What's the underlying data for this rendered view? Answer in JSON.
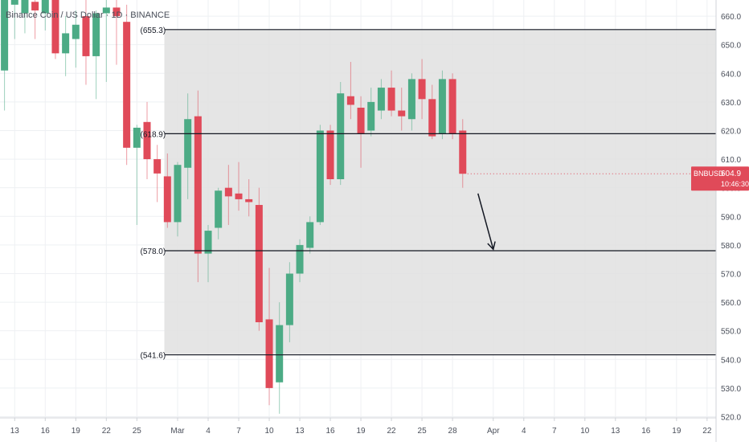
{
  "chart_data": {
    "type": "candlestick",
    "title": "Binance Coin / US Dollar · 1D · BINANCE",
    "ylim": [
      517,
      668
    ],
    "y_ticks": [
      520,
      530,
      540,
      550,
      560,
      570,
      580,
      590,
      600,
      610,
      620,
      630,
      640,
      650,
      660
    ],
    "y_tick_labels": [
      "520.0",
      "530.0",
      "540.0",
      "550.0",
      "560.0",
      "570.0",
      "580.0",
      "590.0",
      "600.0",
      "610.0",
      "620.0",
      "630.0",
      "640.0",
      "650.0",
      "660.0"
    ],
    "x_ticks": [
      {
        "label": "13",
        "day": -16
      },
      {
        "label": "16",
        "day": -13
      },
      {
        "label": "19",
        "day": -10
      },
      {
        "label": "22",
        "day": -7
      },
      {
        "label": "25",
        "day": -4
      },
      {
        "label": "Mar",
        "day": 0
      },
      {
        "label": "4",
        "day": 3
      },
      {
        "label": "7",
        "day": 6
      },
      {
        "label": "10",
        "day": 9
      },
      {
        "label": "13",
        "day": 12
      },
      {
        "label": "16",
        "day": 15
      },
      {
        "label": "19",
        "day": 18
      },
      {
        "label": "22",
        "day": 21
      },
      {
        "label": "25",
        "day": 24
      },
      {
        "label": "28",
        "day": 27
      },
      {
        "label": "Apr",
        "day": 31
      },
      {
        "label": "4",
        "day": 34
      },
      {
        "label": "7",
        "day": 37
      },
      {
        "label": "10",
        "day": 40
      },
      {
        "label": "13",
        "day": 43
      },
      {
        "label": "16",
        "day": 46
      },
      {
        "label": "19",
        "day": 49
      },
      {
        "label": "22",
        "day": 52
      }
    ],
    "candles": [
      {
        "day": -17,
        "o": 641,
        "h": 668,
        "l": 627,
        "c": 666
      },
      {
        "day": -16,
        "o": 664,
        "h": 670,
        "l": 652,
        "c": 668
      },
      {
        "day": -15,
        "o": 661,
        "h": 668,
        "l": 654,
        "c": 666
      },
      {
        "day": -14,
        "o": 665,
        "h": 670,
        "l": 652,
        "c": 662
      },
      {
        "day": -13,
        "o": 661,
        "h": 668,
        "l": 655,
        "c": 666
      },
      {
        "day": -12,
        "o": 666,
        "h": 670,
        "l": 645,
        "c": 647
      },
      {
        "day": -11,
        "o": 647,
        "h": 660,
        "l": 639,
        "c": 654
      },
      {
        "day": -10,
        "o": 652,
        "h": 662,
        "l": 642,
        "c": 657
      },
      {
        "day": -9,
        "o": 660,
        "h": 666,
        "l": 636,
        "c": 646
      },
      {
        "day": -8,
        "o": 646,
        "h": 662,
        "l": 631,
        "c": 661
      },
      {
        "day": -7,
        "o": 661,
        "h": 670,
        "l": 637,
        "c": 663
      },
      {
        "day": -6,
        "o": 663,
        "h": 668,
        "l": 643,
        "c": 660
      },
      {
        "day": -5,
        "o": 658,
        "h": 664,
        "l": 608,
        "c": 614
      },
      {
        "day": -4,
        "o": 614,
        "h": 622,
        "l": 587,
        "c": 621
      },
      {
        "day": -3,
        "o": 623,
        "h": 630,
        "l": 603,
        "c": 610
      },
      {
        "day": -2,
        "o": 610,
        "h": 615,
        "l": 595,
        "c": 605
      },
      {
        "day": -1,
        "o": 604,
        "h": 612,
        "l": 586,
        "c": 588
      },
      {
        "day": 0,
        "o": 588,
        "h": 609,
        "l": 583,
        "c": 608
      },
      {
        "day": 1,
        "o": 607,
        "h": 633,
        "l": 596,
        "c": 624
      },
      {
        "day": 2,
        "o": 625,
        "h": 634,
        "l": 567,
        "c": 577
      },
      {
        "day": 3,
        "o": 577,
        "h": 587,
        "l": 567,
        "c": 585
      },
      {
        "day": 4,
        "o": 586,
        "h": 600,
        "l": 582,
        "c": 599
      },
      {
        "day": 5,
        "o": 600,
        "h": 608,
        "l": 587,
        "c": 597
      },
      {
        "day": 6,
        "o": 598,
        "h": 609,
        "l": 592,
        "c": 596
      },
      {
        "day": 7,
        "o": 596,
        "h": 603,
        "l": 590,
        "c": 595
      },
      {
        "day": 8,
        "o": 594,
        "h": 600,
        "l": 550,
        "c": 553
      },
      {
        "day": 9,
        "o": 554,
        "h": 572,
        "l": 524,
        "c": 530
      },
      {
        "day": 10,
        "o": 532,
        "h": 560,
        "l": 521,
        "c": 552
      },
      {
        "day": 11,
        "o": 552,
        "h": 574,
        "l": 546,
        "c": 570
      },
      {
        "day": 12,
        "o": 570,
        "h": 582,
        "l": 567,
        "c": 580
      },
      {
        "day": 13,
        "o": 579,
        "h": 590,
        "l": 577,
        "c": 588
      },
      {
        "day": 14,
        "o": 588,
        "h": 622,
        "l": 587,
        "c": 620
      },
      {
        "day": 15,
        "o": 620,
        "h": 622,
        "l": 601,
        "c": 603
      },
      {
        "day": 16,
        "o": 603,
        "h": 637,
        "l": 601,
        "c": 633
      },
      {
        "day": 17,
        "o": 632,
        "h": 644,
        "l": 624,
        "c": 629
      },
      {
        "day": 18,
        "o": 628,
        "h": 632,
        "l": 607,
        "c": 619
      },
      {
        "day": 19,
        "o": 620,
        "h": 635,
        "l": 618,
        "c": 630
      },
      {
        "day": 20,
        "o": 627,
        "h": 638,
        "l": 624,
        "c": 635
      },
      {
        "day": 21,
        "o": 635,
        "h": 641,
        "l": 625,
        "c": 627
      },
      {
        "day": 22,
        "o": 627,
        "h": 635,
        "l": 620,
        "c": 625
      },
      {
        "day": 23,
        "o": 624,
        "h": 640,
        "l": 620,
        "c": 638
      },
      {
        "day": 24,
        "o": 638,
        "h": 645,
        "l": 624,
        "c": 631
      },
      {
        "day": 25,
        "o": 631,
        "h": 636,
        "l": 617,
        "c": 618
      },
      {
        "day": 26,
        "o": 619,
        "h": 641,
        "l": 617,
        "c": 638
      },
      {
        "day": 27,
        "o": 638,
        "h": 640,
        "l": 617,
        "c": 619
      },
      {
        "day": 28,
        "o": 620,
        "h": 624,
        "l": 600,
        "c": 604.9
      }
    ],
    "levels": [
      {
        "label": "(655.3)",
        "value": 655.3
      },
      {
        "label": "(618.9)",
        "value": 618.9
      },
      {
        "label": "(578.0)",
        "value": 578.0
      },
      {
        "label": "(541.6)",
        "value": 541.6
      }
    ],
    "range_box": {
      "from_day": -1.3,
      "to_value_top": 655.3,
      "to_value_bottom": 541.6
    },
    "arrow": {
      "from": {
        "day": 29.5,
        "value": 598
      },
      "to": {
        "day": 31,
        "value": 578.5
      }
    },
    "price_tag": {
      "symbol": "BNBUSD",
      "price": "604.9",
      "countdown": "10:46:30",
      "value": 604.9
    },
    "colors": {
      "up": "#4cab85",
      "down": "#e04a59",
      "wick": "#9aa3ab",
      "box": "#e1e1e1",
      "level": "#131722",
      "grid": "#eef0f3",
      "text": "#4a4f5a",
      "tag": "#e04a59"
    }
  }
}
